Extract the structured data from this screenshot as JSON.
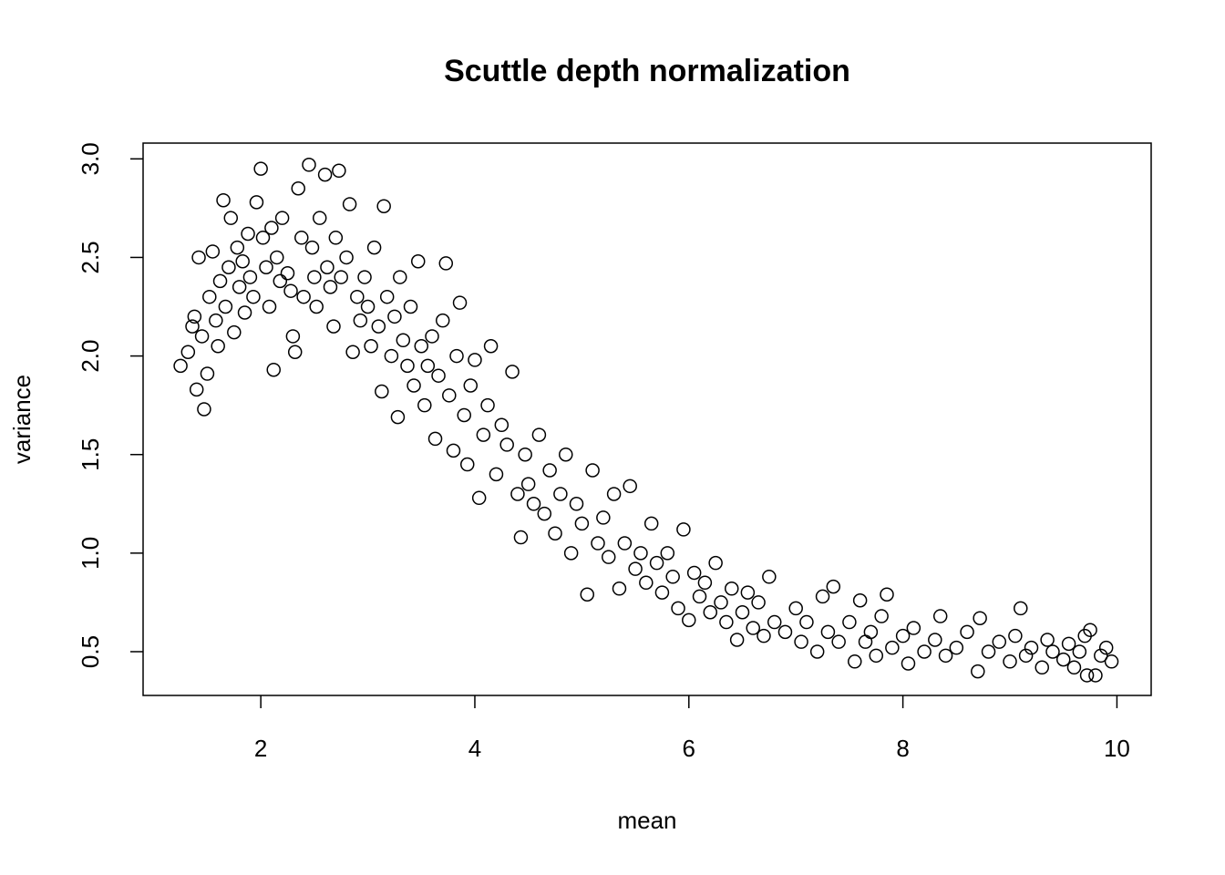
{
  "chart_data": {
    "type": "scatter",
    "title": "Scuttle depth normalization",
    "x_label": "mean",
    "y_label": "variance",
    "xlim": [
      0.9,
      10.32
    ],
    "ylim": [
      0.278,
      3.08
    ],
    "xticks": [
      2,
      4,
      6,
      8,
      10
    ],
    "yticks": [
      0.5,
      {
        "value": 1,
        "label": "1.0"
      },
      1.5,
      {
        "value": 2,
        "label": "2.0"
      },
      2.5,
      {
        "value": 3,
        "label": "3.0"
      }
    ],
    "color": "#000000",
    "x": [
      1.25,
      1.32,
      1.36,
      1.38,
      1.4,
      1.42,
      1.45,
      1.47,
      1.5,
      1.52,
      1.55,
      1.58,
      1.6,
      1.62,
      1.65,
      1.67,
      1.7,
      1.72,
      1.75,
      1.78,
      1.8,
      1.83,
      1.85,
      1.88,
      1.9,
      1.93,
      1.96,
      2.0,
      2.02,
      2.05,
      2.08,
      2.1,
      2.12,
      2.15,
      2.18,
      2.2,
      2.25,
      2.28,
      2.3,
      2.32,
      2.35,
      2.38,
      2.4,
      2.45,
      2.48,
      2.5,
      2.52,
      2.55,
      2.6,
      2.62,
      2.65,
      2.68,
      2.7,
      2.73,
      2.75,
      2.8,
      2.83,
      2.86,
      2.9,
      2.93,
      2.97,
      3.0,
      3.03,
      3.06,
      3.1,
      3.13,
      3.15,
      3.18,
      3.22,
      3.25,
      3.28,
      3.3,
      3.33,
      3.37,
      3.4,
      3.43,
      3.47,
      3.5,
      3.53,
      3.56,
      3.6,
      3.63,
      3.66,
      3.7,
      3.73,
      3.76,
      3.8,
      3.83,
      3.86,
      3.9,
      3.93,
      3.96,
      4.0,
      4.04,
      4.08,
      4.12,
      4.15,
      4.2,
      4.25,
      4.3,
      4.35,
      4.4,
      4.43,
      4.47,
      4.5,
      4.55,
      4.6,
      4.65,
      4.7,
      4.75,
      4.8,
      4.85,
      4.9,
      4.95,
      5.0,
      5.05,
      5.1,
      5.15,
      5.2,
      5.25,
      5.3,
      5.35,
      5.4,
      5.45,
      5.5,
      5.55,
      5.6,
      5.65,
      5.7,
      5.75,
      5.8,
      5.85,
      5.9,
      5.95,
      6.0,
      6.05,
      6.1,
      6.15,
      6.2,
      6.25,
      6.3,
      6.35,
      6.4,
      6.45,
      6.5,
      6.55,
      6.6,
      6.65,
      6.7,
      6.75,
      6.8,
      6.9,
      7.0,
      7.05,
      7.1,
      7.2,
      7.25,
      7.3,
      7.35,
      7.4,
      7.5,
      7.55,
      7.6,
      7.65,
      7.7,
      7.75,
      7.8,
      7.85,
      7.9,
      8.0,
      8.05,
      8.1,
      8.2,
      8.3,
      8.35,
      8.4,
      8.5,
      8.6,
      8.7,
      8.72,
      8.8,
      8.9,
      9.0,
      9.05,
      9.1,
      9.15,
      9.2,
      9.3,
      9.35,
      9.4,
      9.5,
      9.55,
      9.6,
      9.65,
      9.7,
      9.72,
      9.75,
      9.8,
      9.85,
      9.9,
      9.95
    ],
    "values": [
      1.95,
      2.02,
      2.15,
      2.2,
      1.83,
      2.5,
      2.1,
      1.73,
      1.91,
      2.3,
      2.53,
      2.18,
      2.05,
      2.38,
      2.79,
      2.25,
      2.45,
      2.7,
      2.12,
      2.55,
      2.35,
      2.48,
      2.22,
      2.62,
      2.4,
      2.3,
      2.78,
      2.95,
      2.6,
      2.45,
      2.25,
      2.65,
      1.93,
      2.5,
      2.38,
      2.7,
      2.42,
      2.33,
      2.1,
      2.02,
      2.85,
      2.6,
      2.3,
      2.97,
      2.55,
      2.4,
      2.25,
      2.7,
      2.92,
      2.45,
      2.35,
      2.15,
      2.6,
      2.94,
      2.4,
      2.5,
      2.77,
      2.02,
      2.3,
      2.18,
      2.4,
      2.25,
      2.05,
      2.55,
      2.15,
      1.82,
      2.76,
      2.3,
      2.0,
      2.2,
      1.69,
      2.4,
      2.08,
      1.95,
      2.25,
      1.85,
      2.48,
      2.05,
      1.75,
      1.95,
      2.1,
      1.58,
      1.9,
      2.18,
      2.47,
      1.8,
      1.52,
      2.0,
      2.27,
      1.7,
      1.45,
      1.85,
      1.98,
      1.28,
      1.6,
      1.75,
      2.05,
      1.4,
      1.65,
      1.55,
      1.92,
      1.3,
      1.08,
      1.5,
      1.35,
      1.25,
      1.6,
      1.2,
      1.42,
      1.1,
      1.3,
      1.5,
      1.0,
      1.25,
      1.15,
      0.79,
      1.42,
      1.05,
      1.18,
      0.98,
      1.3,
      0.82,
      1.05,
      1.34,
      0.92,
      1.0,
      0.85,
      1.15,
      0.95,
      0.8,
      1.0,
      0.88,
      0.72,
      1.12,
      0.66,
      0.9,
      0.78,
      0.85,
      0.7,
      0.95,
      0.75,
      0.65,
      0.82,
      0.56,
      0.7,
      0.8,
      0.62,
      0.75,
      0.58,
      0.88,
      0.65,
      0.6,
      0.72,
      0.55,
      0.65,
      0.5,
      0.78,
      0.6,
      0.83,
      0.55,
      0.65,
      0.45,
      0.76,
      0.55,
      0.6,
      0.48,
      0.68,
      0.79,
      0.52,
      0.58,
      0.44,
      0.62,
      0.5,
      0.56,
      0.68,
      0.48,
      0.52,
      0.6,
      0.4,
      0.67,
      0.5,
      0.55,
      0.45,
      0.58,
      0.72,
      0.48,
      0.52,
      0.42,
      0.56,
      0.5,
      0.46,
      0.54,
      0.42,
      0.5,
      0.58,
      0.38,
      0.61,
      0.38,
      0.48,
      0.52,
      0.45
    ]
  }
}
